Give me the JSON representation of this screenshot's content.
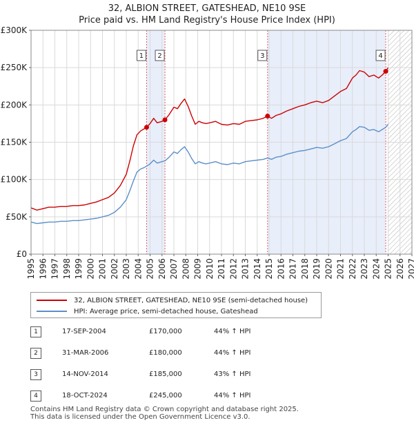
{
  "title_line1": "32, ALBION STREET, GATESHEAD, NE10 9SE",
  "title_line2": "Price paid vs. HM Land Registry's House Price Index (HPI)",
  "legend": {
    "property_label": "32, ALBION STREET, GATESHEAD, NE10 9SE (semi-detached house)",
    "hpi_label": "HPI: Average price, semi-detached house, Gateshead"
  },
  "sales": [
    {
      "num": "1",
      "date": "17-SEP-2004",
      "price": "£170,000",
      "hpi": "44% ↑ HPI"
    },
    {
      "num": "2",
      "date": "31-MAR-2006",
      "price": "£180,000",
      "hpi": "44% ↑ HPI"
    },
    {
      "num": "3",
      "date": "14-NOV-2014",
      "price": "£185,000",
      "hpi": "43% ↑ HPI"
    },
    {
      "num": "4",
      "date": "18-OCT-2024",
      "price": "£245,000",
      "hpi": "44% ↑ HPI"
    }
  ],
  "footer_line1": "Contains HM Land Registry data © Crown copyright and database right 2025.",
  "footer_line2": "This data is licensed under the Open Government Licence v3.0.",
  "colors": {
    "property": "#cc0000",
    "hpi": "#5b8fc9",
    "shade": "#e8eefa",
    "grid": "#d9d9d9",
    "sale_line": "#e06060"
  },
  "chart_data": {
    "type": "line",
    "title": "32, ALBION STREET, GATESHEAD, NE10 9SE — Price paid vs. HM Land Registry's House Price Index (HPI)",
    "xlabel": "",
    "ylabel": "",
    "xlim": [
      1995,
      2027
    ],
    "ylim": [
      0,
      300000
    ],
    "x_ticks": [
      "1995",
      "1996",
      "1997",
      "1998",
      "1999",
      "2000",
      "2001",
      "2002",
      "2003",
      "2004",
      "2005",
      "2006",
      "2007",
      "2008",
      "2009",
      "2010",
      "2011",
      "2012",
      "2013",
      "2014",
      "2015",
      "2016",
      "2017",
      "2018",
      "2019",
      "2020",
      "2021",
      "2022",
      "2023",
      "2024",
      "2025",
      "2026",
      "2027"
    ],
    "y_ticks": [
      {
        "value": 0,
        "label": "£0"
      },
      {
        "value": 50000,
        "label": "£50K"
      },
      {
        "value": 100000,
        "label": "£100K"
      },
      {
        "value": 150000,
        "label": "£150K"
      },
      {
        "value": 200000,
        "label": "£200K"
      },
      {
        "value": 250000,
        "label": "£250K"
      },
      {
        "value": 300000,
        "label": "£300K"
      }
    ],
    "shaded_ranges": [
      [
        2004.71,
        2006.25
      ],
      [
        2014.87,
        2024.8
      ]
    ],
    "projection_start": 2025.0,
    "series": [
      {
        "name": "32, ALBION STREET, GATESHEAD, NE10 9SE (semi-detached house)",
        "x": [
          1995.0,
          1995.5,
          1996.0,
          1996.5,
          1997.0,
          1997.5,
          1998.0,
          1998.5,
          1999.0,
          1999.5,
          2000.0,
          2000.5,
          2001.0,
          2001.5,
          2002.0,
          2002.5,
          2003.0,
          2003.3,
          2003.6,
          2003.9,
          2004.2,
          2004.5,
          2004.71,
          2005.0,
          2005.3,
          2005.6,
          2006.0,
          2006.25,
          2006.6,
          2007.0,
          2007.3,
          2007.6,
          2007.9,
          2008.2,
          2008.5,
          2008.8,
          2009.1,
          2009.4,
          2009.7,
          2010.0,
          2010.5,
          2011.0,
          2011.5,
          2012.0,
          2012.5,
          2013.0,
          2013.5,
          2014.0,
          2014.5,
          2014.87,
          2015.2,
          2015.6,
          2016.0,
          2016.5,
          2017.0,
          2017.5,
          2018.0,
          2018.5,
          2019.0,
          2019.5,
          2020.0,
          2020.5,
          2021.0,
          2021.5,
          2022.0,
          2022.3,
          2022.6,
          2023.0,
          2023.4,
          2023.8,
          2024.2,
          2024.5,
          2024.8,
          2025.0
        ],
        "values": [
          62000,
          59000,
          61000,
          63000,
          63000,
          64000,
          64000,
          65000,
          65000,
          66000,
          68000,
          70000,
          73000,
          76000,
          82000,
          92000,
          107000,
          125000,
          145000,
          160000,
          165000,
          168000,
          170000,
          175000,
          182000,
          176000,
          178000,
          180000,
          187000,
          197000,
          195000,
          202000,
          208000,
          198000,
          185000,
          174000,
          178000,
          176000,
          175000,
          176000,
          178000,
          174000,
          173000,
          175000,
          174000,
          178000,
          179000,
          180000,
          182000,
          185000,
          182000,
          186000,
          188000,
          192000,
          195000,
          198000,
          200000,
          203000,
          205000,
          203000,
          206000,
          212000,
          218000,
          222000,
          236000,
          240000,
          246000,
          244000,
          238000,
          240000,
          236000,
          240000,
          245000,
          250000
        ]
      },
      {
        "name": "HPI: Average price, semi-detached house, Gateshead",
        "x": [
          1995.0,
          1995.5,
          1996.0,
          1996.5,
          1997.0,
          1997.5,
          1998.0,
          1998.5,
          1999.0,
          1999.5,
          2000.0,
          2000.5,
          2001.0,
          2001.5,
          2002.0,
          2002.5,
          2003.0,
          2003.3,
          2003.6,
          2003.9,
          2004.2,
          2004.5,
          2004.71,
          2005.0,
          2005.3,
          2005.6,
          2006.0,
          2006.25,
          2006.6,
          2007.0,
          2007.3,
          2007.6,
          2007.9,
          2008.2,
          2008.5,
          2008.8,
          2009.1,
          2009.4,
          2009.7,
          2010.0,
          2010.5,
          2011.0,
          2011.5,
          2012.0,
          2012.5,
          2013.0,
          2013.5,
          2014.0,
          2014.5,
          2014.87,
          2015.2,
          2015.6,
          2016.0,
          2016.5,
          2017.0,
          2017.5,
          2018.0,
          2018.5,
          2019.0,
          2019.5,
          2020.0,
          2020.5,
          2021.0,
          2021.5,
          2022.0,
          2022.3,
          2022.6,
          2023.0,
          2023.4,
          2023.8,
          2024.2,
          2024.5,
          2024.8,
          2025.0
        ],
        "values": [
          43000,
          41000,
          42000,
          43000,
          43000,
          44000,
          44000,
          45000,
          45000,
          46000,
          47000,
          48000,
          50000,
          52000,
          56000,
          63000,
          73000,
          85000,
          98000,
          110000,
          114000,
          116000,
          118000,
          121000,
          126000,
          122000,
          124000,
          125000,
          130000,
          137000,
          135000,
          140000,
          144000,
          137000,
          128000,
          121000,
          124000,
          122000,
          121000,
          122000,
          124000,
          121000,
          120000,
          122000,
          121000,
          124000,
          125000,
          126000,
          127000,
          129000,
          127000,
          130000,
          131000,
          134000,
          136000,
          138000,
          139000,
          141000,
          143000,
          142000,
          144000,
          148000,
          152000,
          155000,
          164000,
          167000,
          171000,
          170000,
          166000,
          167000,
          164000,
          167000,
          170000,
          174000
        ]
      }
    ],
    "sales_points": [
      {
        "label": "1",
        "x": 2004.71,
        "y": 170000
      },
      {
        "label": "2",
        "x": 2006.25,
        "y": 180000
      },
      {
        "label": "3",
        "x": 2014.87,
        "y": 185000
      },
      {
        "label": "4",
        "x": 2024.8,
        "y": 245000
      }
    ]
  }
}
